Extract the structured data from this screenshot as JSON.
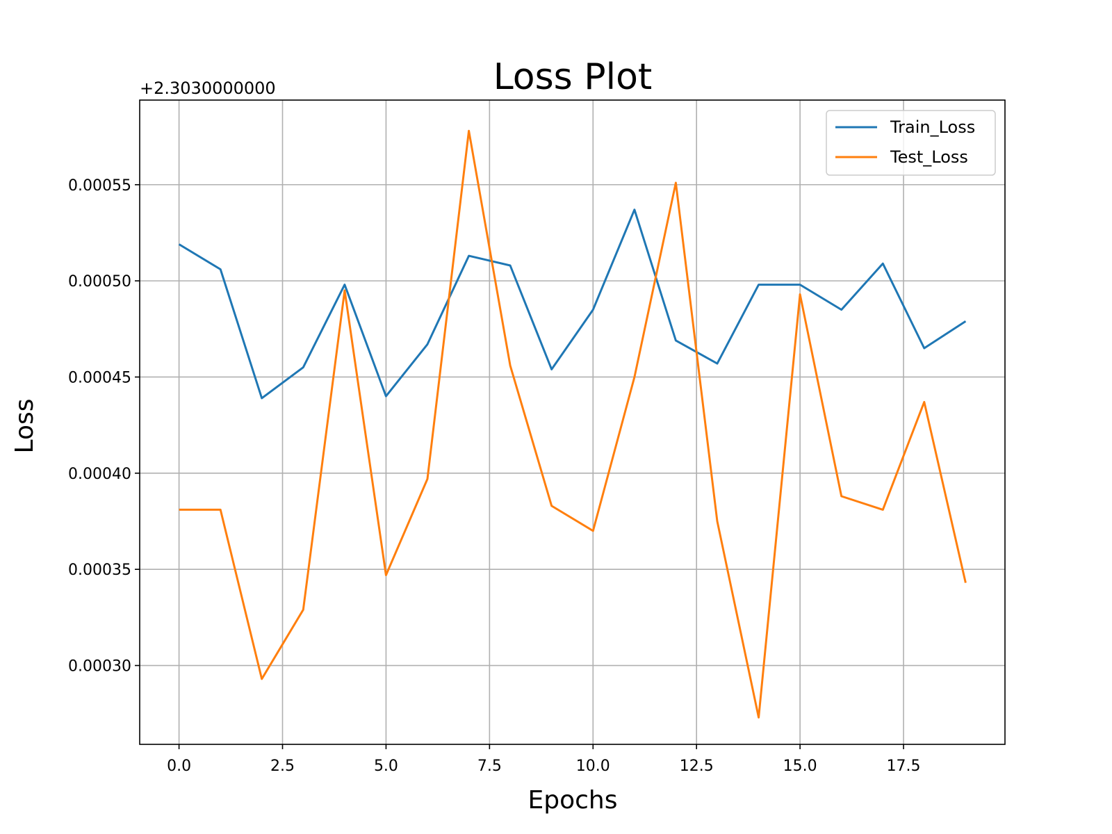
{
  "chart_data": {
    "type": "line",
    "title": "Loss Plot",
    "xlabel": "Epochs",
    "ylabel": "Loss",
    "y_offset_label": "+2.3030000000",
    "y_offset": 2.303,
    "x": [
      0,
      1,
      2,
      3,
      4,
      5,
      6,
      7,
      8,
      9,
      10,
      11,
      12,
      13,
      14,
      15,
      16,
      17,
      18,
      19
    ],
    "series": [
      {
        "name": "Train_Loss",
        "color": "#1f77b4",
        "values": [
          0.000519,
          0.000506,
          0.000439,
          0.000455,
          0.000498,
          0.00044,
          0.000467,
          0.000513,
          0.000508,
          0.000454,
          0.000485,
          0.000537,
          0.000469,
          0.000457,
          0.000498,
          0.000498,
          0.000485,
          0.000509,
          0.000465,
          0.000479
        ]
      },
      {
        "name": "Test_Loss",
        "color": "#ff7f0e",
        "values": [
          0.000381,
          0.000381,
          0.000293,
          0.000329,
          0.000495,
          0.000347,
          0.000397,
          0.000578,
          0.000456,
          0.000383,
          0.00037,
          0.00045,
          0.000551,
          0.000375,
          0.000273,
          0.000493,
          0.000388,
          0.000381,
          0.000437,
          0.000343
        ]
      }
    ],
    "xlim": [
      -0.95,
      19.95
    ],
    "ylim": [
      0.000259,
      0.000594
    ],
    "x_ticks": [
      0,
      2.5,
      5,
      7.5,
      10,
      12.5,
      15,
      17.5
    ],
    "x_tick_labels": [
      "0.0",
      "2.5",
      "5.0",
      "7.5",
      "10.0",
      "12.5",
      "15.0",
      "17.5"
    ],
    "y_ticks": [
      0.0003,
      0.00035,
      0.0004,
      0.00045,
      0.0005,
      0.00055
    ],
    "y_tick_labels": [
      "0.00030",
      "0.00035",
      "0.00040",
      "0.00045",
      "0.00050",
      "0.00055"
    ],
    "grid": true,
    "legend_position": "top-right"
  }
}
